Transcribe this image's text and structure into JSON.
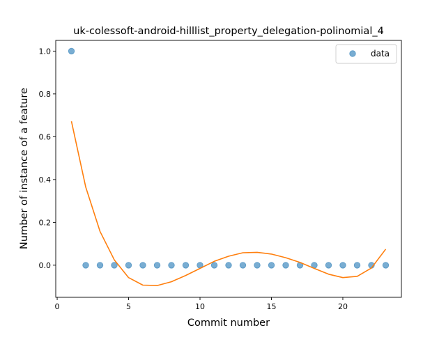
{
  "chart_data": {
    "type": "scatter",
    "title": "uk-colessoft-android-hilllist_property_delegation-polinomial_4",
    "xlabel": "Commit number",
    "ylabel": "Number of instance of a feature",
    "xlim": [
      -0.1,
      24.1
    ],
    "ylim": [
      -0.15,
      1.05
    ],
    "xticks": [
      0,
      5,
      10,
      15,
      20
    ],
    "xtick_labels": [
      "0",
      "5",
      "10",
      "15",
      "20"
    ],
    "yticks": [
      0.0,
      0.2,
      0.4,
      0.6,
      0.8,
      1.0
    ],
    "ytick_labels": [
      "0.0",
      "0.2",
      "0.4",
      "0.6",
      "0.8",
      "1.0"
    ],
    "grid": false,
    "legend": {
      "position": "upper right",
      "entries": [
        "data"
      ]
    },
    "series": [
      {
        "name": "data",
        "type": "scatter",
        "color": "#1f77b4",
        "x": [
          1,
          2,
          3,
          4,
          5,
          6,
          7,
          8,
          9,
          10,
          11,
          12,
          13,
          14,
          15,
          16,
          17,
          18,
          19,
          20,
          21,
          22,
          23
        ],
        "y": [
          1,
          0,
          0,
          0,
          0,
          0,
          0,
          0,
          0,
          0,
          0,
          0,
          0,
          0,
          0,
          0,
          0,
          0,
          0,
          0,
          0,
          0,
          0
        ]
      },
      {
        "type": "line",
        "color": "#ff7f0e",
        "x": [
          1,
          2,
          3,
          4,
          5,
          6,
          7,
          8,
          9,
          10,
          11,
          12,
          13,
          14,
          15,
          16,
          17,
          18,
          19,
          20,
          21,
          22,
          23
        ],
        "y": [
          0.672,
          0.365,
          0.158,
          0.025,
          -0.058,
          -0.093,
          -0.095,
          -0.077,
          -0.048,
          -0.015,
          0.018,
          0.042,
          0.058,
          0.06,
          0.052,
          0.035,
          0.013,
          -0.015,
          -0.042,
          -0.058,
          -0.052,
          -0.013,
          0.075
        ]
      }
    ]
  }
}
